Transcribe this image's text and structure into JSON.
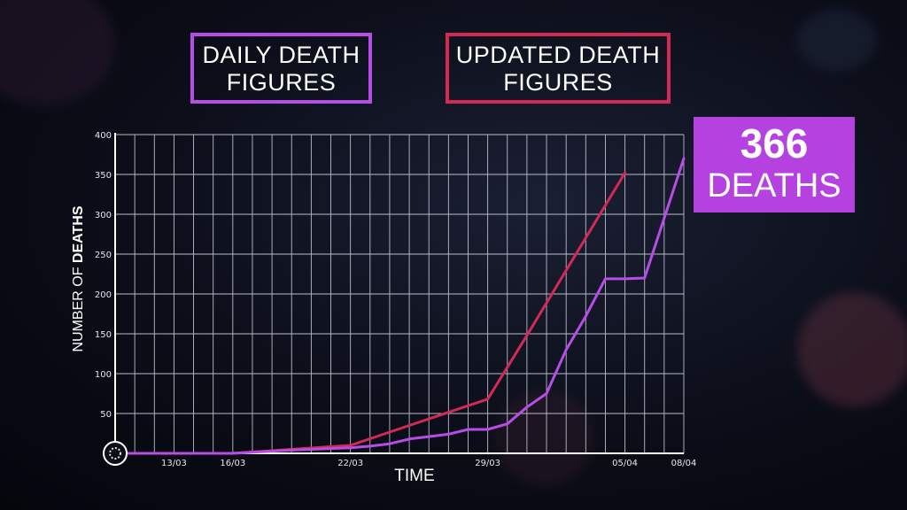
{
  "legend": {
    "daily": {
      "line1": "DAILY DEATH",
      "line2": "FIGURES",
      "color": "#b84de6"
    },
    "updated": {
      "line1": "UPDATED DEATH",
      "line2": "FIGURES",
      "color": "#d22a55"
    }
  },
  "callout": {
    "number": "366",
    "label": "DEATHS",
    "color": "#b541e0"
  },
  "chart_data": {
    "type": "line",
    "xlabel": "TIME",
    "ylabel_prefix": "NUMBER OF ",
    "ylabel_bold": "DEATHS",
    "ylim": [
      0,
      400
    ],
    "y_ticks": [
      50,
      100,
      150,
      200,
      250,
      300,
      350,
      400
    ],
    "x_range": [
      "2020-03-10",
      "2020-04-08"
    ],
    "x_ticks": [
      {
        "date": "2020-03-13",
        "label": "13/03"
      },
      {
        "date": "2020-03-16",
        "label": "16/03"
      },
      {
        "date": "2020-03-22",
        "label": "22/03"
      },
      {
        "date": "2020-03-29",
        "label": "29/03"
      },
      {
        "date": "2020-04-05",
        "label": "05/04"
      },
      {
        "date": "2020-04-08",
        "label": "08/04"
      }
    ],
    "grid": true,
    "series": [
      {
        "name": "DAILY DEATH FIGURES",
        "color": "#b84de6",
        "points": [
          [
            "2020-03-10",
            0
          ],
          [
            "2020-03-13",
            0
          ],
          [
            "2020-03-16",
            0
          ],
          [
            "2020-03-19",
            4
          ],
          [
            "2020-03-22",
            7
          ],
          [
            "2020-03-23",
            9
          ],
          [
            "2020-03-24",
            12
          ],
          [
            "2020-03-25",
            18
          ],
          [
            "2020-03-26",
            21
          ],
          [
            "2020-03-27",
            24
          ],
          [
            "2020-03-28",
            30
          ],
          [
            "2020-03-29",
            30
          ],
          [
            "2020-03-30",
            37
          ],
          [
            "2020-03-31",
            58
          ],
          [
            "2020-04-01",
            75
          ],
          [
            "2020-04-02",
            130
          ],
          [
            "2020-04-03",
            172
          ],
          [
            "2020-04-04",
            219
          ],
          [
            "2020-04-05",
            219
          ],
          [
            "2020-04-06",
            220
          ],
          [
            "2020-04-08",
            370
          ]
        ]
      },
      {
        "name": "UPDATED DEATH FIGURES",
        "color": "#d22a55",
        "points": [
          [
            "2020-03-10",
            0
          ],
          [
            "2020-03-16",
            0
          ],
          [
            "2020-03-19",
            5
          ],
          [
            "2020-03-22",
            10
          ],
          [
            "2020-03-25",
            35
          ],
          [
            "2020-03-29",
            68
          ],
          [
            "2020-03-31",
            148
          ],
          [
            "2020-04-05",
            352
          ]
        ]
      }
    ]
  }
}
